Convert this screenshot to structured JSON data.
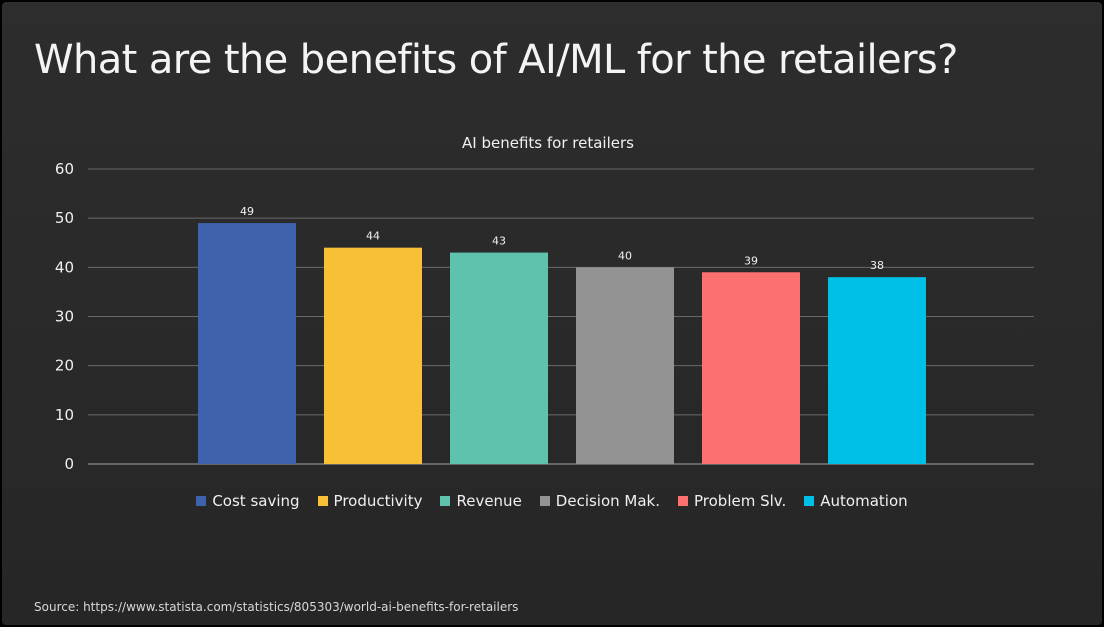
{
  "slide": {
    "title": "What are the benefits of AI/ML for the retailers?",
    "source": "Source: https://www.statista.com/statistics/805303/world-ai-benefits-for-retailers"
  },
  "chart_data": {
    "type": "bar",
    "title": "AI benefits for retailers",
    "xlabel": "",
    "ylabel": "",
    "ylim": [
      0,
      60
    ],
    "yticks": [
      0,
      10,
      20,
      30,
      40,
      50,
      60
    ],
    "grid": true,
    "legend_position": "bottom",
    "data_labels": true,
    "series": [
      {
        "name": "Cost saving",
        "value": 49,
        "color": "#3f62ad"
      },
      {
        "name": "Productivity",
        "value": 44,
        "color": "#f8c037"
      },
      {
        "name": "Revenue",
        "value": 43,
        "color": "#5fc2ad"
      },
      {
        "name": "Decision Mak.",
        "value": 40,
        "color": "#939393"
      },
      {
        "name": "Problem Slv.",
        "value": 39,
        "color": "#fd7070"
      },
      {
        "name": "Automation",
        "value": 38,
        "color": "#00c0e8"
      }
    ]
  }
}
